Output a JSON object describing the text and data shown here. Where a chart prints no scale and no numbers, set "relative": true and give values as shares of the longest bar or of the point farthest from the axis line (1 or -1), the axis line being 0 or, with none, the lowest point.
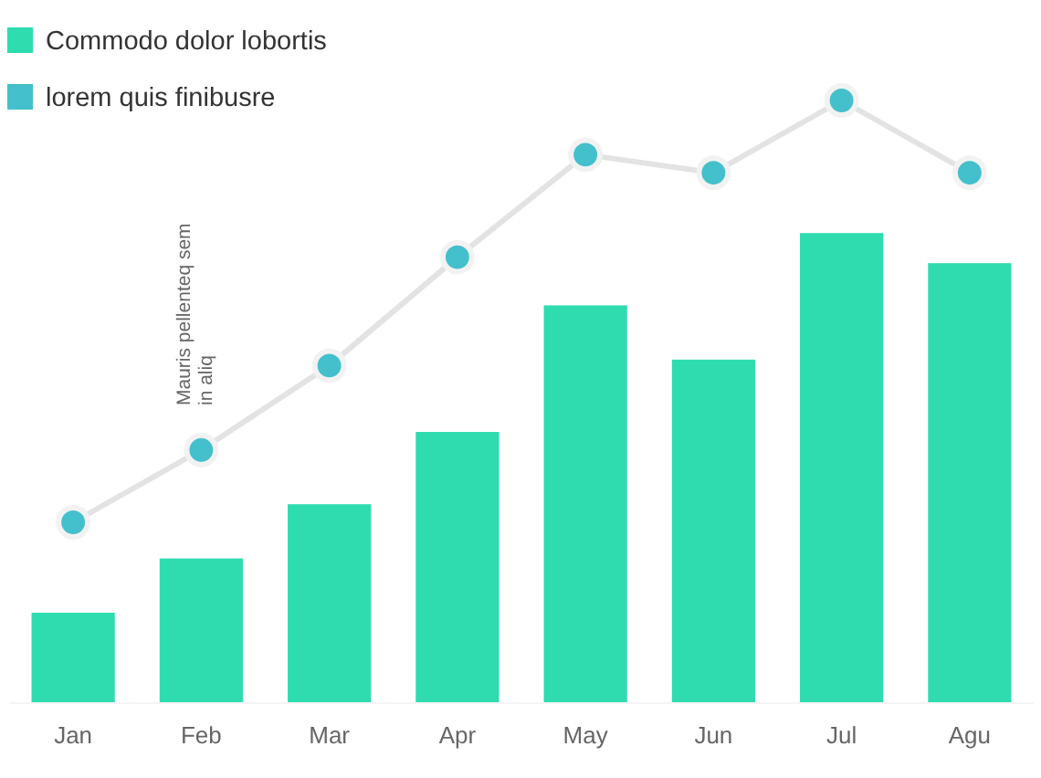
{
  "chart_data": {
    "type": "bar",
    "relative": true,
    "categories": [
      "Jan",
      "Feb",
      "Mar",
      "Apr",
      "May",
      "Jun",
      "Jul",
      "Agu"
    ],
    "series": [
      {
        "name": "Commodo dolor lobortis",
        "color": "#2edcb0",
        "values": [
          0.15,
          0.24,
          0.33,
          0.45,
          0.66,
          0.57,
          0.78,
          0.73
        ]
      },
      {
        "name": "lorem quis finibusre",
        "type": "line",
        "color": "#44c0cc",
        "values": [
          0.3,
          0.42,
          0.56,
          0.74,
          0.91,
          0.88,
          1,
          0.88
        ]
      }
    ],
    "marker": "circle",
    "legend": "top left",
    "annotations": [
      "Mauris pellenteq sem in aliq"
    ]
  }
}
